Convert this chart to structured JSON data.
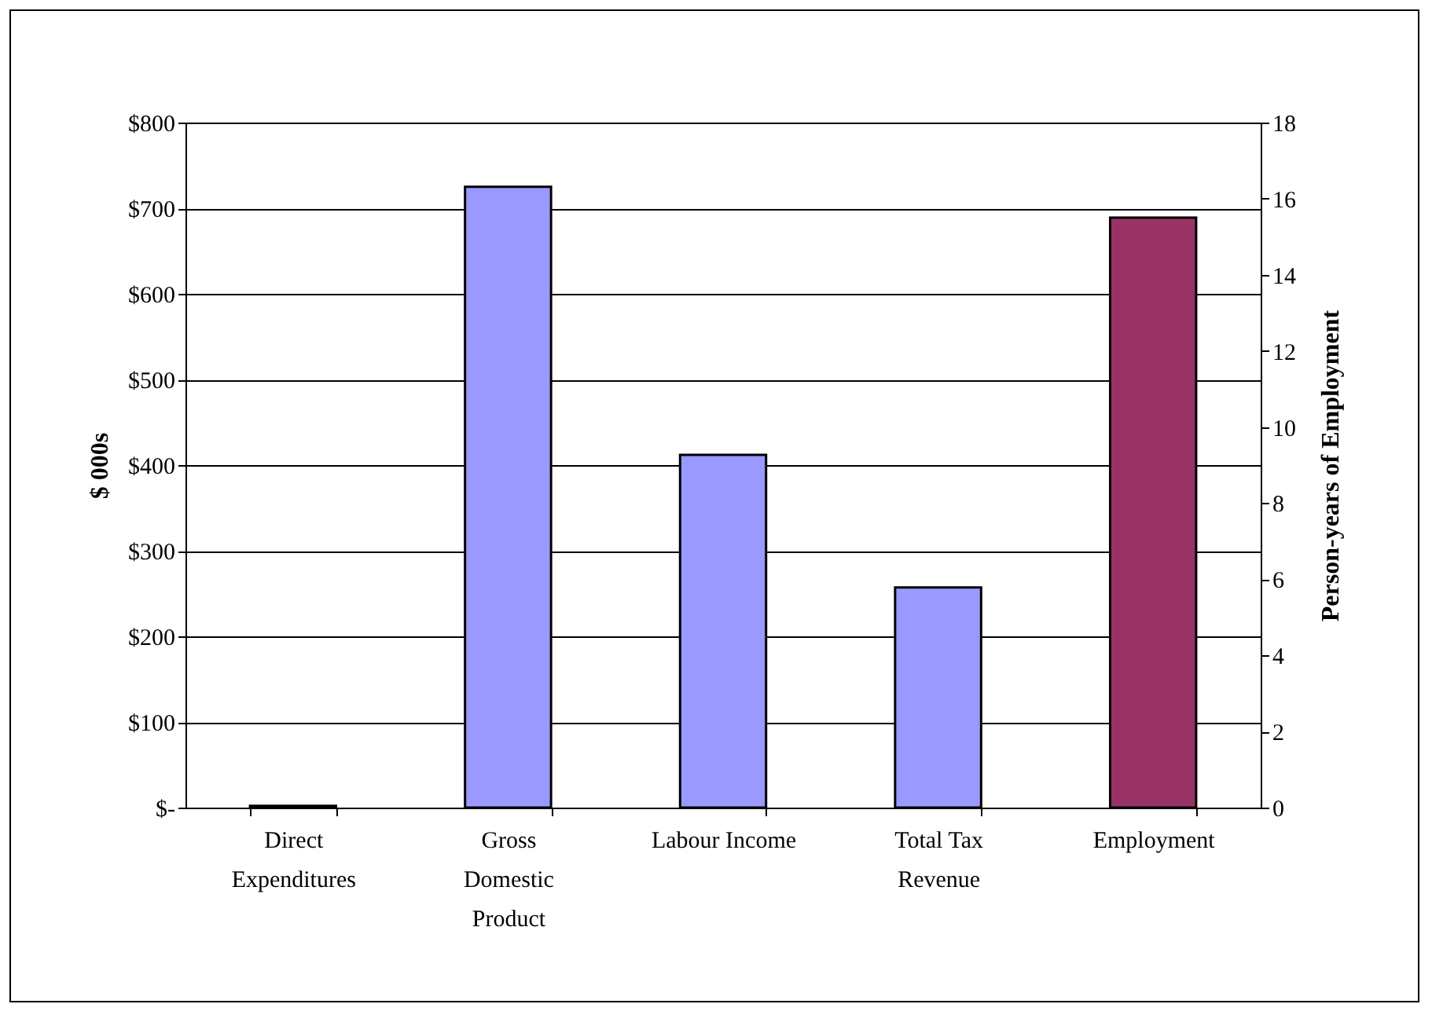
{
  "chart_data": {
    "type": "bar",
    "categories": [
      "Direct Expenditures",
      "Gross Domestic Product",
      "Labour Income",
      "Total Tax Revenue",
      "Employment"
    ],
    "series": [
      {
        "color": "#9999ff",
        "values": [
          2,
          725,
          412,
          257,
          null
        ]
      },
      {
        "color": "#993366",
        "axis": "y2",
        "values": [
          null,
          null,
          null,
          null,
          15.5
        ]
      }
    ],
    "ylabel": "$ 000s",
    "y2label": "Person-years of Employment",
    "ylim": [
      0,
      800
    ],
    "yticks": [
      {
        "value": 0,
        "label": "$-"
      },
      {
        "value": 100,
        "label": "$100"
      },
      {
        "value": 200,
        "label": "$200"
      },
      {
        "value": 300,
        "label": "$300"
      },
      {
        "value": 400,
        "label": "$400"
      },
      {
        "value": 500,
        "label": "$500"
      },
      {
        "value": 600,
        "label": "$600"
      },
      {
        "value": 700,
        "label": "$700"
      },
      {
        "value": 800,
        "label": "$800"
      }
    ],
    "y2lim": [
      0,
      18
    ],
    "y2ticks": [
      0,
      2,
      4,
      6,
      8,
      10,
      12,
      14,
      16,
      18
    ],
    "grid": "y"
  }
}
